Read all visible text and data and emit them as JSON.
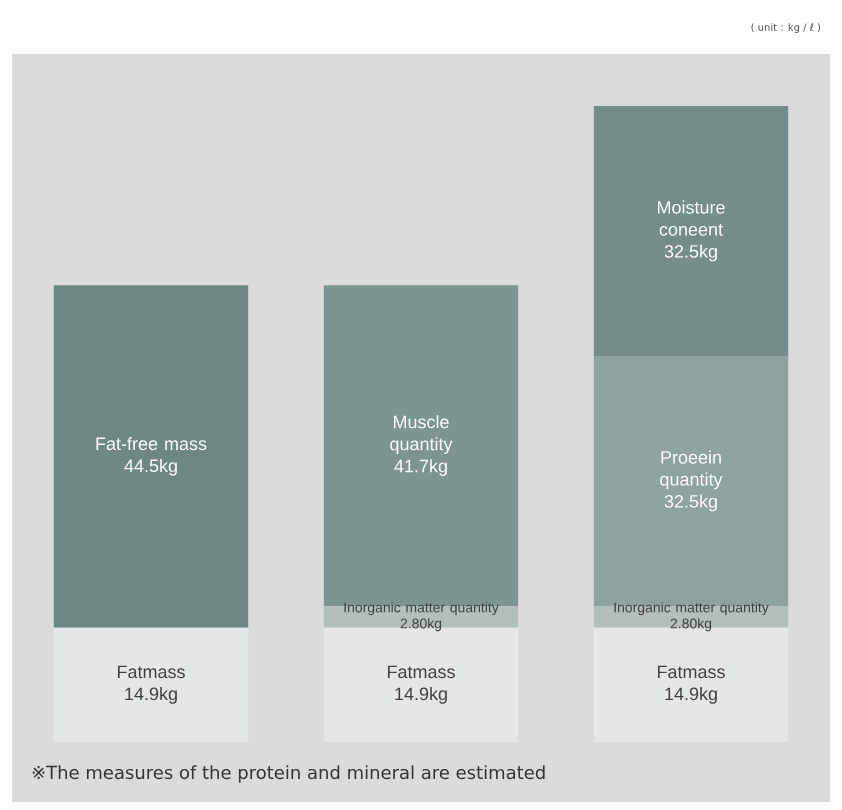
{
  "chart_data": {
    "type": "bar",
    "stacked": true,
    "categories": [
      null,
      null,
      null
    ],
    "series": [
      {
        "name": "Fatmass",
        "color": "#e3e8e6",
        "values": [
          14.9,
          14.9,
          14.9
        ],
        "value_labels": [
          "14.9kg",
          "14.9kg",
          "14.9kg"
        ]
      },
      {
        "name": "Inorganic matter quantity",
        "color": "#b3bfbc",
        "values": [
          null,
          2.8,
          2.8
        ],
        "value_labels": [
          null,
          "2.80kg",
          "2.80kg"
        ]
      },
      {
        "name": "Fat-free mass",
        "color": "#6d8784",
        "values": [
          44.5,
          null,
          null
        ],
        "value_labels": [
          "44.5kg",
          null,
          null
        ]
      },
      {
        "name": "Muscle quantity",
        "color": "#7d9592",
        "values": [
          null,
          41.7,
          null
        ],
        "value_labels": [
          null,
          "41.7kg",
          null
        ]
      },
      {
        "name": "Proeein quantity",
        "color": "#8ea29f",
        "values": [
          null,
          null,
          32.5
        ],
        "value_labels": [
          null,
          null,
          "32.5kg"
        ]
      },
      {
        "name": "Moisture coneent",
        "color": "#758d8a",
        "values": [
          null,
          null,
          32.5
        ],
        "value_labels": [
          null,
          null,
          "32.5kg"
        ]
      }
    ],
    "annotations": [
      "( unit : kg / ℓ )",
      "※The measures of the protein and mineral are estimated"
    ]
  }
}
